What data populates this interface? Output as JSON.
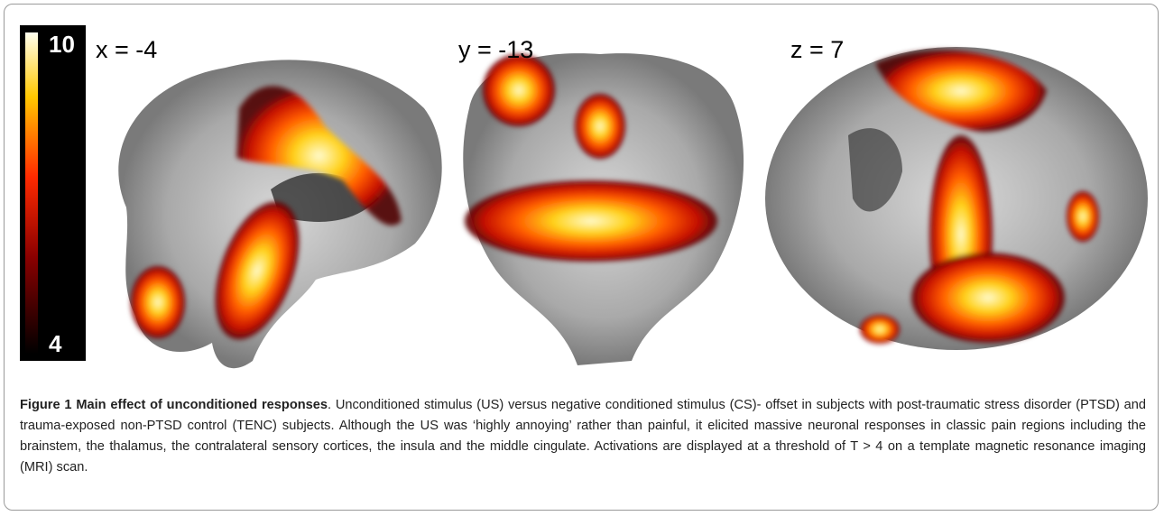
{
  "figure": {
    "colorbar": {
      "max": "10",
      "min": "4"
    },
    "panels": [
      {
        "label": "x = -4"
      },
      {
        "label": "y = -13"
      },
      {
        "label": "z = 7"
      }
    ],
    "caption": {
      "label": "Figure 1",
      "title": "Main effect of unconditioned responses",
      "text": ". Unconditioned stimulus (US) versus negative conditioned stimulus (CS)- offset in subjects with post-traumatic stress disorder (PTSD) and trauma-exposed non-PTSD control (TENC) subjects. Although the US was ‘highly annoying’ rather than painful, it elicited massive neuronal responses in classic pain regions including the brainstem, the thalamus, the contralateral sensory cortices, the insula and the middle cingulate. Activations are displayed at a threshold of T > 4 on a template magnetic resonance imaging (MRI) scan."
    }
  }
}
